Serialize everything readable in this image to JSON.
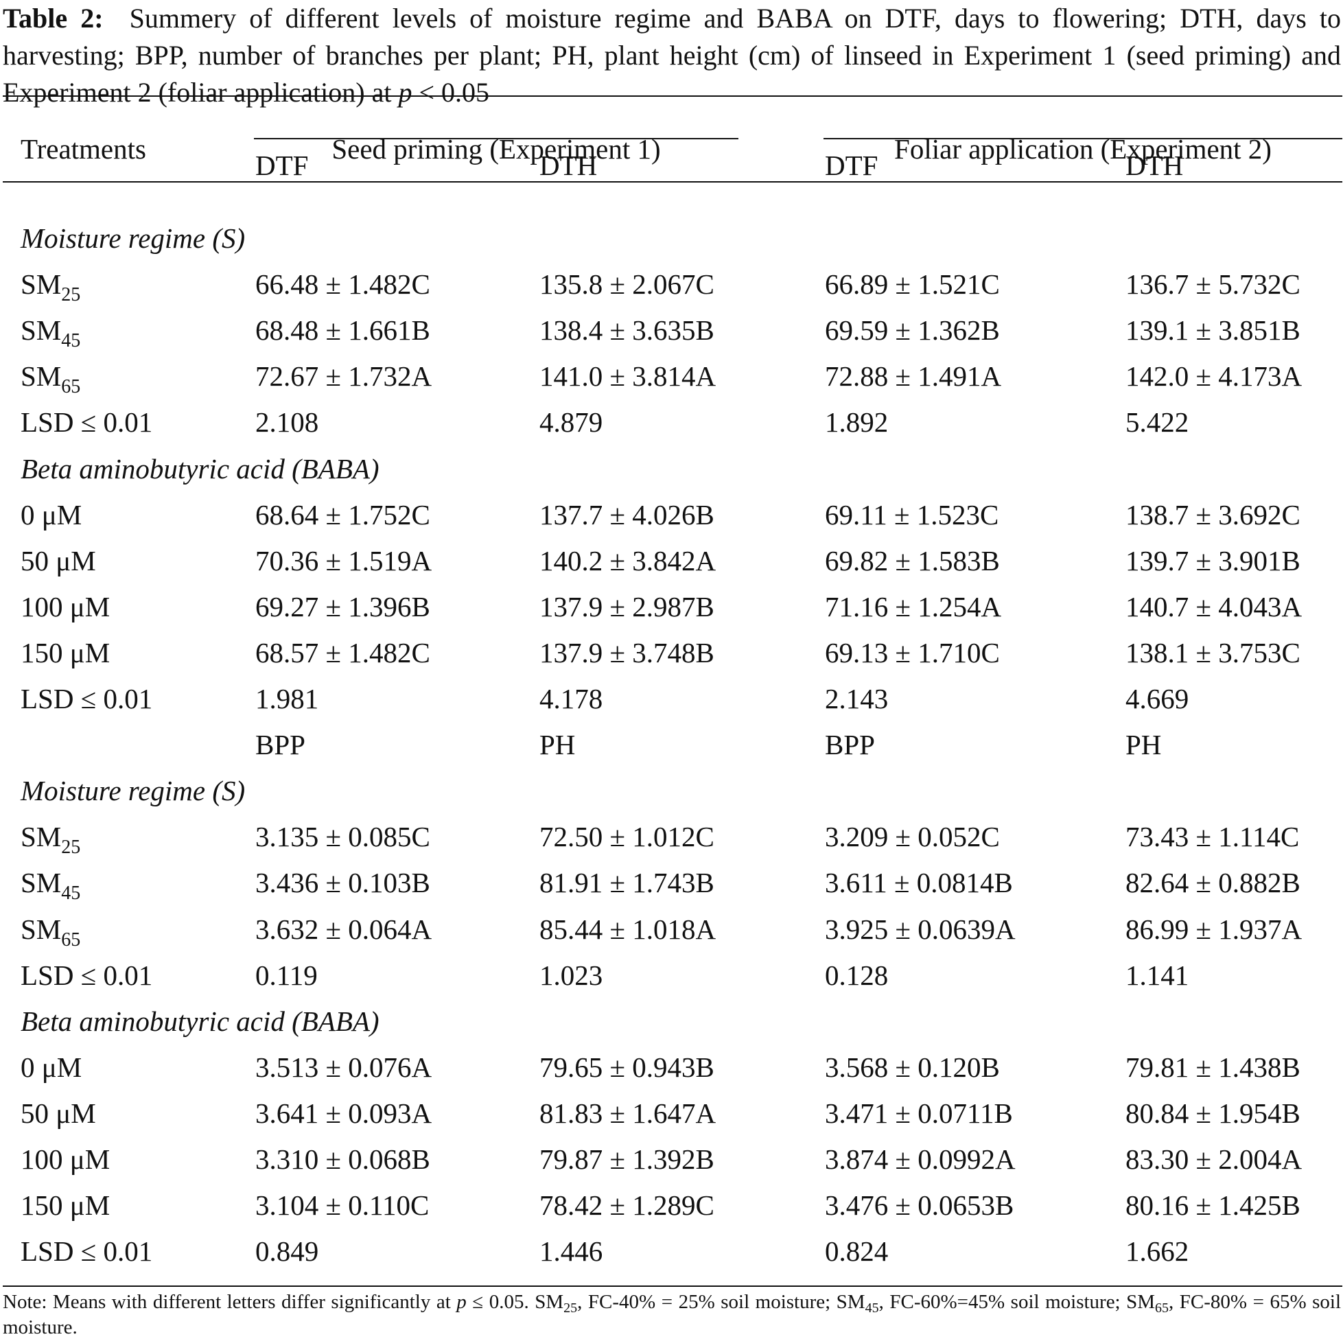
{
  "caption": {
    "label": "Table 2:",
    "text_a": "Summery of different levels of moisture regime and BABA on DTF, days to flowering; DTH, days to harvesting; BPP, number of branches per plant; PH, plant height (cm) of linseed in Experiment 1 (seed priming) and Experiment 2 (foliar application) at ",
    "p": "p",
    "text_b": " < 0.05"
  },
  "header": {
    "treatments": "Treatments",
    "exp1": "Seed priming (Experiment 1)",
    "exp2": "Foliar application (Experiment 2)"
  },
  "subheader1": [
    "DTF",
    "DTH",
    "DTF",
    "DTH"
  ],
  "subheader2": [
    "BPP",
    "PH",
    "BPP",
    "PH"
  ],
  "sections": {
    "moisture": "Moisture regime (S)",
    "baba": "Beta aminobutyric acid (BABA)"
  },
  "labels": {
    "sm": "SM",
    "sm25": "25",
    "sm45": "45",
    "sm65": "65",
    "lsd": "LSD ≤ 0.01",
    "d0": "0 μM",
    "d50": "50 μM",
    "d100": "100 μM",
    "d150": "150 μM"
  },
  "block1": {
    "moisture": [
      [
        "66.48 ± 1.482C",
        "135.8 ± 2.067C",
        "66.89 ± 1.521C",
        "136.7 ± 5.732C"
      ],
      [
        "68.48 ± 1.661B",
        "138.4 ± 3.635B",
        "69.59 ± 1.362B",
        "139.1 ± 3.851B"
      ],
      [
        "72.67 ± 1.732A",
        "141.0 ± 3.814A",
        "72.88 ± 1.491A",
        "142.0 ± 4.173A"
      ],
      [
        "2.108",
        "4.879",
        "1.892",
        "5.422"
      ]
    ],
    "baba": [
      [
        "68.64 ± 1.752C",
        "137.7 ± 4.026B",
        "69.11 ± 1.523C",
        "138.7 ± 3.692C"
      ],
      [
        "70.36 ± 1.519A",
        "140.2 ± 3.842A",
        "69.82 ± 1.583B",
        "139.7 ± 3.901B"
      ],
      [
        "69.27 ± 1.396B",
        "137.9 ± 2.987B",
        "71.16 ± 1.254A",
        "140.7 ± 4.043A"
      ],
      [
        "68.57 ± 1.482C",
        "137.9 ± 3.748B",
        "69.13 ± 1.710C",
        "138.1 ± 3.753C"
      ],
      [
        "1.981",
        "4.178",
        "2.143",
        "4.669"
      ]
    ]
  },
  "block2": {
    "moisture": [
      [
        "3.135 ± 0.085C",
        "72.50 ± 1.012C",
        "3.209 ± 0.052C",
        "73.43 ± 1.114C"
      ],
      [
        "3.436 ± 0.103B",
        "81.91 ± 1.743B",
        "3.611 ± 0.0814B",
        "82.64 ± 0.882B"
      ],
      [
        "3.632 ± 0.064A",
        "85.44 ± 1.018A",
        "3.925 ± 0.0639A",
        "86.99 ± 1.937A"
      ],
      [
        "0.119",
        "1.023",
        "0.128",
        "1.141"
      ]
    ],
    "baba": [
      [
        "3.513 ± 0.076A",
        "79.65 ± 0.943B",
        "3.568 ± 0.120B",
        "79.81 ± 1.438B"
      ],
      [
        "3.641 ± 0.093A",
        "81.83 ± 1.647A",
        "3.471 ± 0.0711B",
        "80.84 ± 1.954B"
      ],
      [
        "3.310 ± 0.068B",
        "79.87 ± 1.392B",
        "3.874 ± 0.0992A",
        "83.30 ± 2.004A"
      ],
      [
        "3.104 ± 0.110C",
        "78.42 ± 1.289C",
        "3.476 ± 0.0653B",
        "80.16 ± 1.425B"
      ],
      [
        "0.849",
        "1.446",
        "0.824",
        "1.662"
      ]
    ]
  },
  "note": {
    "a": "Note: Means with different letters differ significantly at ",
    "p": "p",
    "b": " ≤ 0.05. SM",
    "s25": "25",
    "c": ", FC-40% = 25% soil moisture; SM",
    "s45": "45",
    "d": ", FC-60%=45% soil moisture; SM",
    "s65": "65",
    "e": ", FC-80% = 65% soil moisture."
  }
}
